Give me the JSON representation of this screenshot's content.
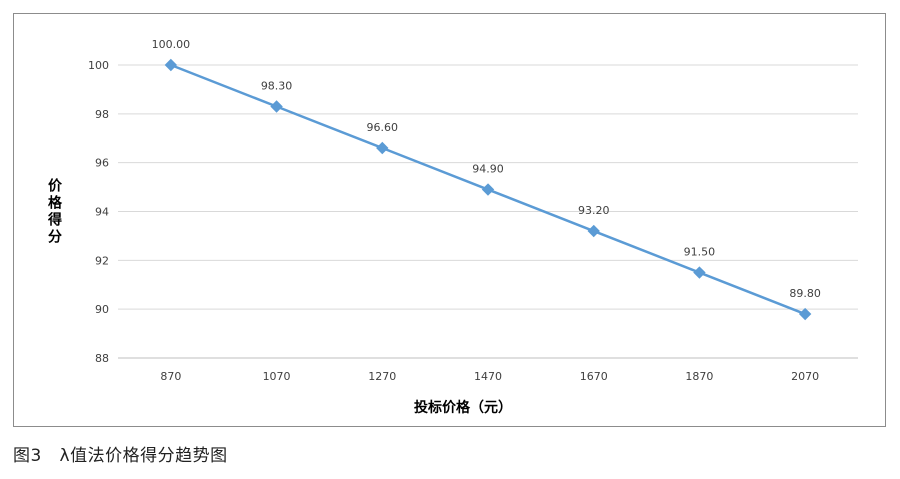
{
  "caption": "图3   λ值法价格得分趋势图",
  "chart_data": {
    "type": "line",
    "title": "",
    "xlabel": "投标价格（元）",
    "ylabel": "价格得分",
    "categories": [
      "870",
      "1070",
      "1270",
      "1470",
      "1670",
      "1870",
      "2070"
    ],
    "series": [
      {
        "values": [
          100.0,
          98.3,
          96.6,
          94.9,
          93.2,
          91.5,
          89.8
        ],
        "labels": [
          "100.00",
          "98.30",
          "96.60",
          "94.90",
          "93.20",
          "91.50",
          "89.80"
        ],
        "color": "#5B9BD5",
        "marker": "diamond"
      }
    ],
    "yticks": [
      "88",
      "90",
      "92",
      "94",
      "96",
      "98",
      "100"
    ],
    "ylim": [
      88,
      100
    ],
    "grid": "horizontal",
    "legend": "none"
  }
}
